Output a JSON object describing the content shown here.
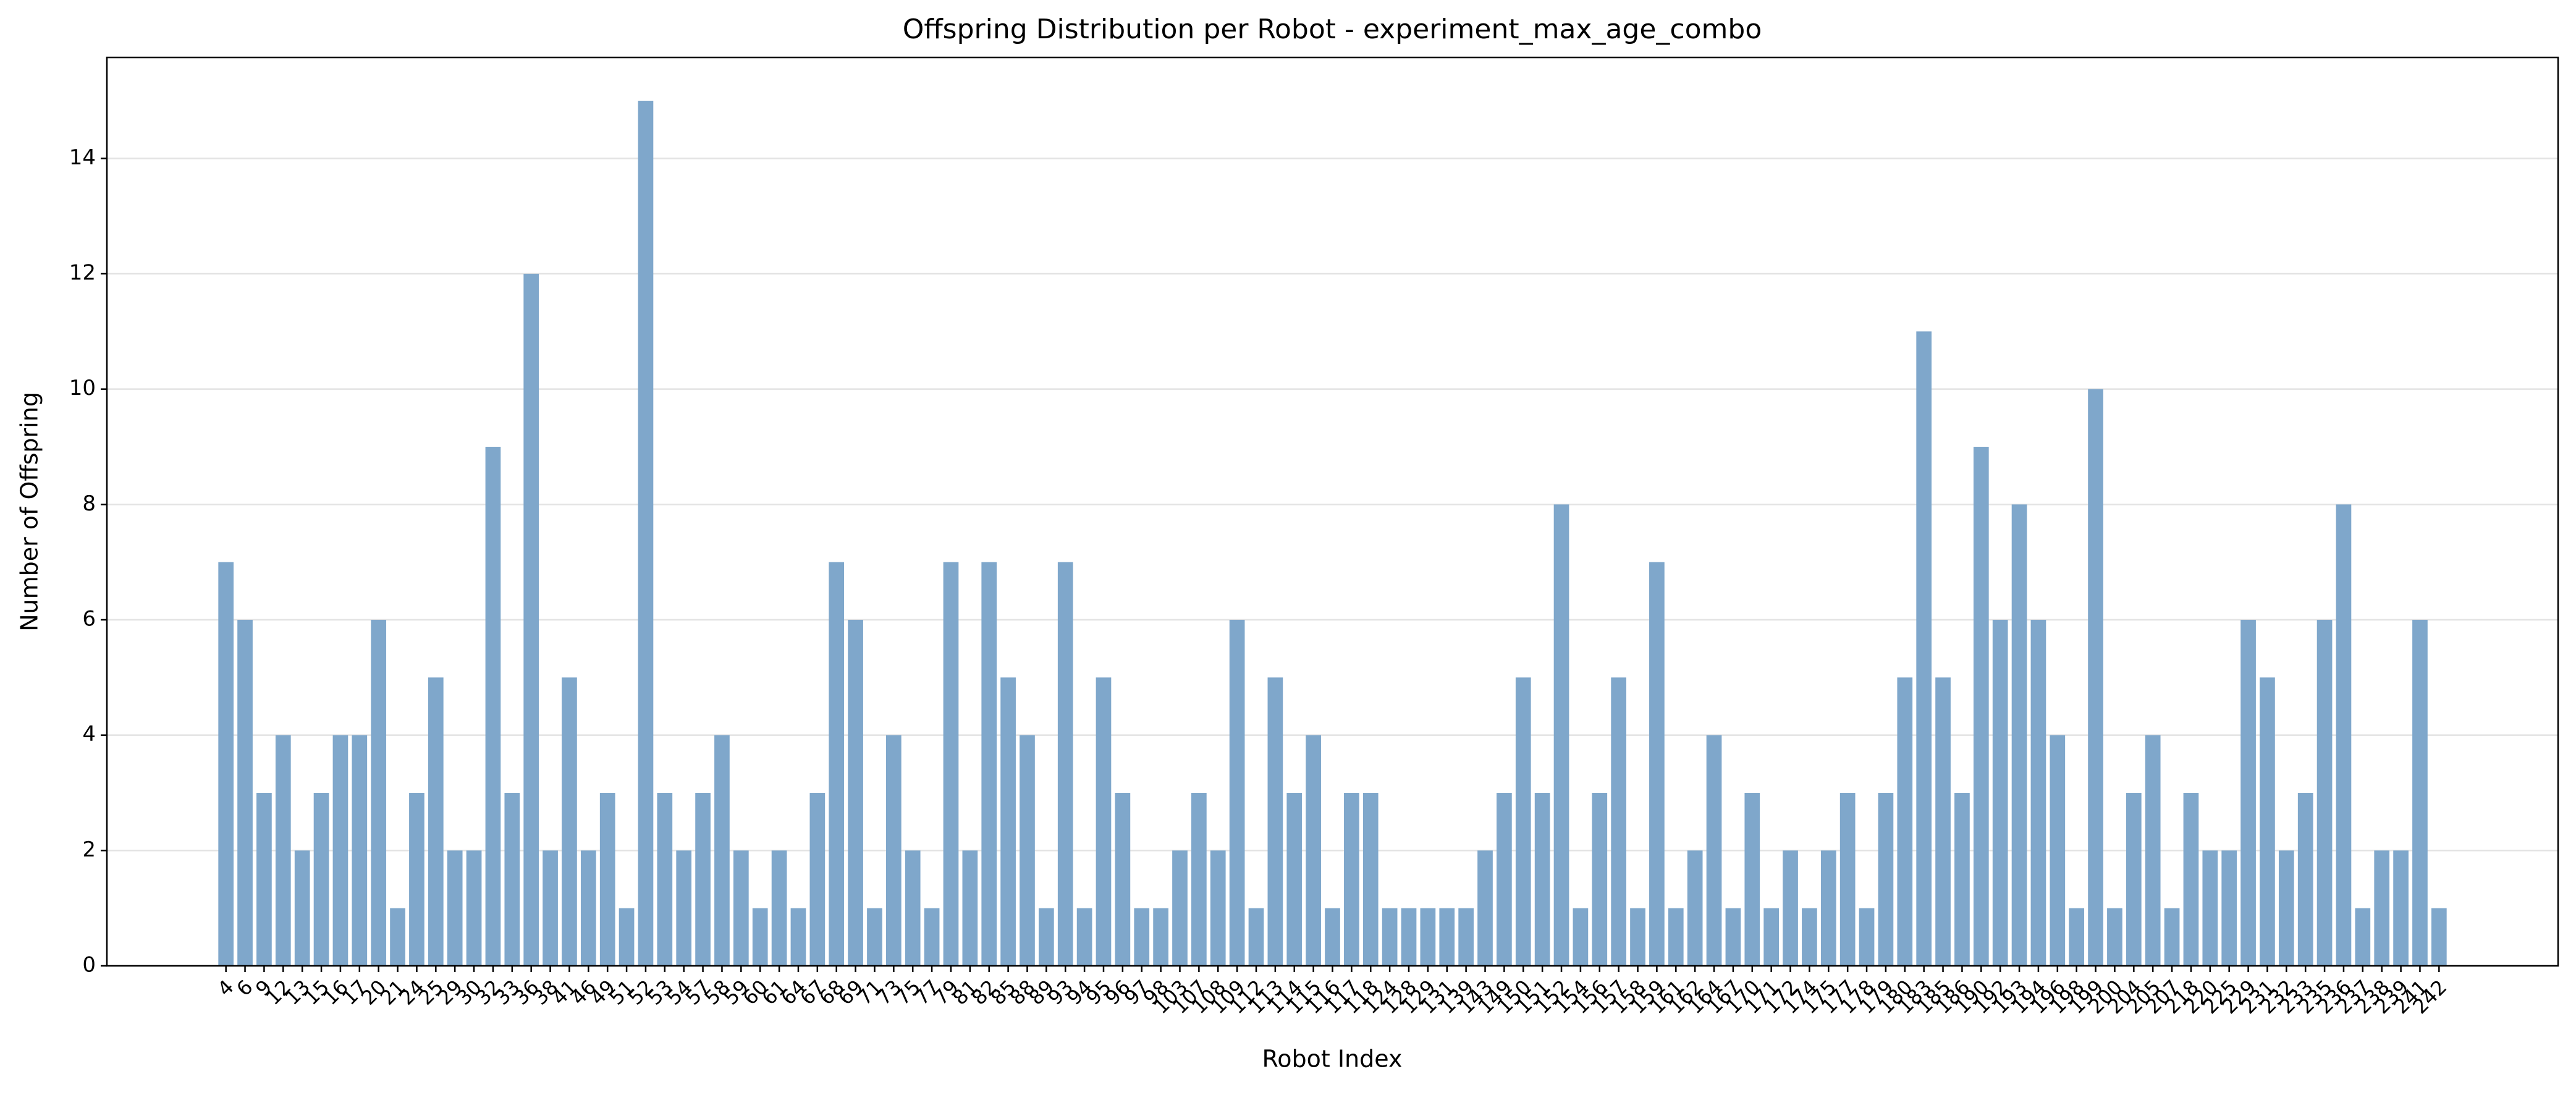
{
  "chart_data": {
    "type": "bar",
    "title": "Offspring Distribution per Robot - experiment_max_age_combo",
    "xlabel": "Robot Index",
    "ylabel": "Number of Offspring",
    "categories": [
      4,
      6,
      9,
      12,
      13,
      15,
      16,
      17,
      20,
      21,
      24,
      25,
      29,
      30,
      32,
      33,
      36,
      38,
      41,
      46,
      49,
      51,
      52,
      53,
      54,
      57,
      58,
      59,
      60,
      61,
      64,
      67,
      68,
      69,
      71,
      73,
      75,
      77,
      79,
      81,
      82,
      85,
      88,
      89,
      93,
      94,
      95,
      96,
      97,
      98,
      103,
      107,
      108,
      109,
      112,
      113,
      114,
      115,
      116,
      117,
      118,
      124,
      128,
      129,
      131,
      139,
      143,
      149,
      150,
      151,
      152,
      154,
      156,
      157,
      158,
      159,
      161,
      162,
      164,
      167,
      170,
      171,
      172,
      174,
      175,
      177,
      178,
      179,
      180,
      183,
      185,
      186,
      190,
      192,
      193,
      194,
      196,
      198,
      199,
      200,
      204,
      205,
      207,
      218,
      220,
      225,
      229,
      231,
      232,
      233,
      235,
      236,
      237,
      238,
      239,
      241,
      242
    ],
    "values": [
      7,
      6,
      3,
      4,
      2,
      3,
      4,
      4,
      6,
      1,
      3,
      5,
      2,
      2,
      9,
      3,
      12,
      2,
      5,
      2,
      3,
      1,
      15,
      3,
      2,
      3,
      4,
      2,
      1,
      2,
      1,
      3,
      7,
      6,
      1,
      4,
      2,
      1,
      7,
      2,
      7,
      5,
      4,
      1,
      7,
      1,
      5,
      3,
      1,
      1,
      2,
      3,
      2,
      6,
      1,
      5,
      3,
      4,
      1,
      3,
      3,
      1,
      1,
      1,
      1,
      1,
      2,
      3,
      5,
      3,
      8,
      1,
      3,
      5,
      1,
      7,
      1,
      2,
      4,
      1,
      3,
      1,
      2,
      1,
      2,
      3,
      1,
      3,
      5,
      11,
      5,
      3,
      9,
      6,
      8,
      6,
      4,
      1,
      10,
      1,
      3,
      4,
      1,
      3,
      2,
      2,
      6,
      5,
      2,
      3,
      6,
      8,
      1,
      2,
      2,
      6,
      1
    ],
    "color": "#7fa7cb",
    "ylim": [
      0,
      15.75
    ],
    "yticks": [
      0,
      2,
      4,
      6,
      8,
      10,
      12,
      14
    ],
    "grid": true
  }
}
